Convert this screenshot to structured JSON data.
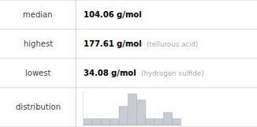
{
  "chart_data": {
    "type": "bar",
    "annotations": [
      [
        "median",
        "104.06 g/mol"
      ],
      [
        "highest",
        "177.61 g/mol",
        "(tellurous acid)"
      ],
      [
        "lowest",
        "34.08 g/mol",
        "(hydrogen sulfide)"
      ],
      [
        "distribution"
      ]
    ],
    "values": [
      1,
      1,
      1,
      1,
      3,
      5,
      4,
      1,
      1,
      2,
      1
    ],
    "color": "#c8ccd4",
    "ylim": [
      0,
      5.5
    ],
    "yticks": [],
    "tick_labels": false,
    "grid": false
  }
}
